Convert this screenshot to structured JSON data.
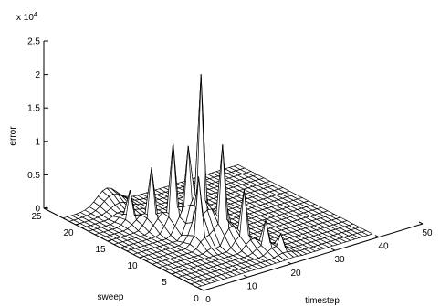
{
  "chart_data": {
    "type": "surface",
    "title": "",
    "zlabel": "error",
    "xlabel": "timestep",
    "ylabel": "sweep",
    "z_exponent_label": "x 10",
    "z_exponent_power": "4",
    "xlim": [
      0,
      50
    ],
    "ylim": [
      0,
      25
    ],
    "zlim": [
      0,
      25000
    ],
    "x_ticks": [
      0,
      10,
      20,
      30,
      40,
      50
    ],
    "x_tick_labels": [
      "0",
      "10",
      "20",
      "30",
      "40",
      "50"
    ],
    "y_ticks": [
      0,
      5,
      10,
      15,
      20,
      25
    ],
    "y_tick_labels": [
      "0",
      "5",
      "10",
      "15",
      "20",
      "25"
    ],
    "z_ticks": [
      0,
      5000,
      10000,
      15000,
      20000,
      25000
    ],
    "z_tick_labels": [
      "0",
      "0.5",
      "1",
      "1.5",
      "2",
      "2.5"
    ],
    "grid": false,
    "surface": {
      "x_range": [
        0,
        40
      ],
      "y_range": [
        1,
        22
      ],
      "ridge": {
        "x": 10,
        "y": 22,
        "value": 2500
      },
      "peaks": [
        {
          "x": 14,
          "y": 10,
          "value": 23500
        },
        {
          "x": 12,
          "y": 13,
          "value": 13000
        },
        {
          "x": 16,
          "y": 8,
          "value": 14500
        },
        {
          "x": 10,
          "y": 15,
          "value": 9000
        },
        {
          "x": 18,
          "y": 6,
          "value": 8500
        },
        {
          "x": 14,
          "y": 12,
          "value": 11000
        },
        {
          "x": 12,
          "y": 9,
          "value": 9500
        },
        {
          "x": 16,
          "y": 11,
          "value": 7500
        },
        {
          "x": 20,
          "y": 4,
          "value": 4500
        },
        {
          "x": 8,
          "y": 17,
          "value": 5000
        },
        {
          "x": 18,
          "y": 9,
          "value": 5500
        },
        {
          "x": 22,
          "y": 3,
          "value": 2500
        }
      ]
    }
  }
}
